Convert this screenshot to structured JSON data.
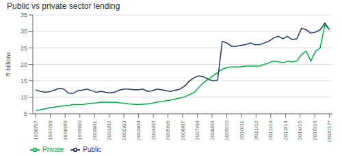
{
  "chart_data": {
    "type": "line",
    "title": "Public vs private sector lending",
    "ylabel": "R billions",
    "x": [
      0,
      0.31746,
      0.634921,
      0.952381,
      1.269841,
      1.587302,
      1.904762,
      2.222222,
      2.539683,
      2.857143,
      3.174603,
      3.492063,
      3.809524,
      4.126984,
      4.444444,
      4.761905,
      5.079365,
      5.396825,
      5.714286,
      6.031746,
      6.349206,
      6.666667,
      6.984127,
      7.301587,
      7.619048,
      7.936508,
      8.253968,
      8.571429,
      8.888889,
      9.206349,
      9.52381,
      9.84127,
      10.15873,
      10.47619,
      10.793651,
      11.111111,
      11.428571,
      11.746032,
      12.063492,
      12.380952,
      12.698413,
      13.015873,
      13.333333,
      13.650794,
      13.968254,
      14.285714,
      14.603175,
      14.920635,
      15.238095,
      15.555556,
      15.873016,
      16.190476,
      16.507937,
      16.825397,
      17.142857,
      17.460317,
      17.777778,
      18.095238,
      18.412698,
      18.730159,
      19.047619,
      19.365079,
      19.68254,
      20
    ],
    "series": [
      {
        "name": "Public",
        "color": "#1f3264",
        "values": [
          12.2,
          11.8,
          11.5,
          11.7,
          12.2,
          12.7,
          12.5,
          11.3,
          11.2,
          12.0,
          12.2,
          12.5,
          12.0,
          11.5,
          11.8,
          11.5,
          11.3,
          11.6,
          12.2,
          12.5,
          12.5,
          12.3,
          12.3,
          12.5,
          11.8,
          12.0,
          12.5,
          12.3,
          12.0,
          11.8,
          12.2,
          12.5,
          13.5,
          15.0,
          16.0,
          16.5,
          16.2,
          15.5,
          15.0,
          15.2,
          27.0,
          26.5,
          25.5,
          25.5,
          25.8,
          26.0,
          26.5,
          26.0,
          26.0,
          26.5,
          27.0,
          28.0,
          28.5,
          27.8,
          28.5,
          27.5,
          27.8,
          31.0,
          30.5,
          29.5,
          29.8,
          30.5,
          32.5,
          30.5
        ]
      },
      {
        "name": "Private",
        "color": "#00aa44",
        "values": [
          6.0,
          6.2,
          6.5,
          6.8,
          7.0,
          7.2,
          7.5,
          7.5,
          7.8,
          7.8,
          7.8,
          8.0,
          8.2,
          8.3,
          8.5,
          8.5,
          8.5,
          8.5,
          8.3,
          8.2,
          8.0,
          7.9,
          7.8,
          7.9,
          8.0,
          8.2,
          8.5,
          8.7,
          9.0,
          9.2,
          9.5,
          9.8,
          10.2,
          10.8,
          11.5,
          13.0,
          14.5,
          15.5,
          16.5,
          17.5,
          18.5,
          19.0,
          19.2,
          19.2,
          19.3,
          19.5,
          19.5,
          19.5,
          19.5,
          20.0,
          20.5,
          21.0,
          20.8,
          20.5,
          21.0,
          20.8,
          21.0,
          23.0,
          24.0,
          21.0,
          24.0,
          25.0,
          32.0,
          30.5
        ]
      }
    ],
    "xlim": [
      -0.2,
      20.2
    ],
    "xticks": [
      {
        "value": 0,
        "label": "1996/97"
      },
      {
        "value": 1,
        "label": "1997/98"
      },
      {
        "value": 2,
        "label": "1998/99"
      },
      {
        "value": 3,
        "label": "1999/00"
      },
      {
        "value": 4,
        "label": "2000/01"
      },
      {
        "value": 5,
        "label": "2001/02"
      },
      {
        "value": 6,
        "label": "2002/03"
      },
      {
        "value": 7,
        "label": "2003/04"
      },
      {
        "value": 8,
        "label": "2004/05"
      },
      {
        "value": 9,
        "label": "2005/06"
      },
      {
        "value": 10,
        "label": "2006/07"
      },
      {
        "value": 11,
        "label": "2007/08"
      },
      {
        "value": 12,
        "label": "2008/09"
      },
      {
        "value": 13,
        "label": "2009/10"
      },
      {
        "value": 14,
        "label": "2010/11"
      },
      {
        "value": 15,
        "label": "2011/12"
      },
      {
        "value": 16,
        "label": "2012/13"
      },
      {
        "value": 17,
        "label": "2013/14"
      },
      {
        "value": 18,
        "label": "2014/15"
      },
      {
        "value": 19,
        "label": "2015/16"
      },
      {
        "value": 20,
        "label": "2016/17*"
      }
    ],
    "ylim": [
      5,
      35
    ],
    "yticks": [
      5,
      10,
      15,
      20,
      25,
      30,
      35
    ],
    "grid": true,
    "legend": "lower left"
  }
}
